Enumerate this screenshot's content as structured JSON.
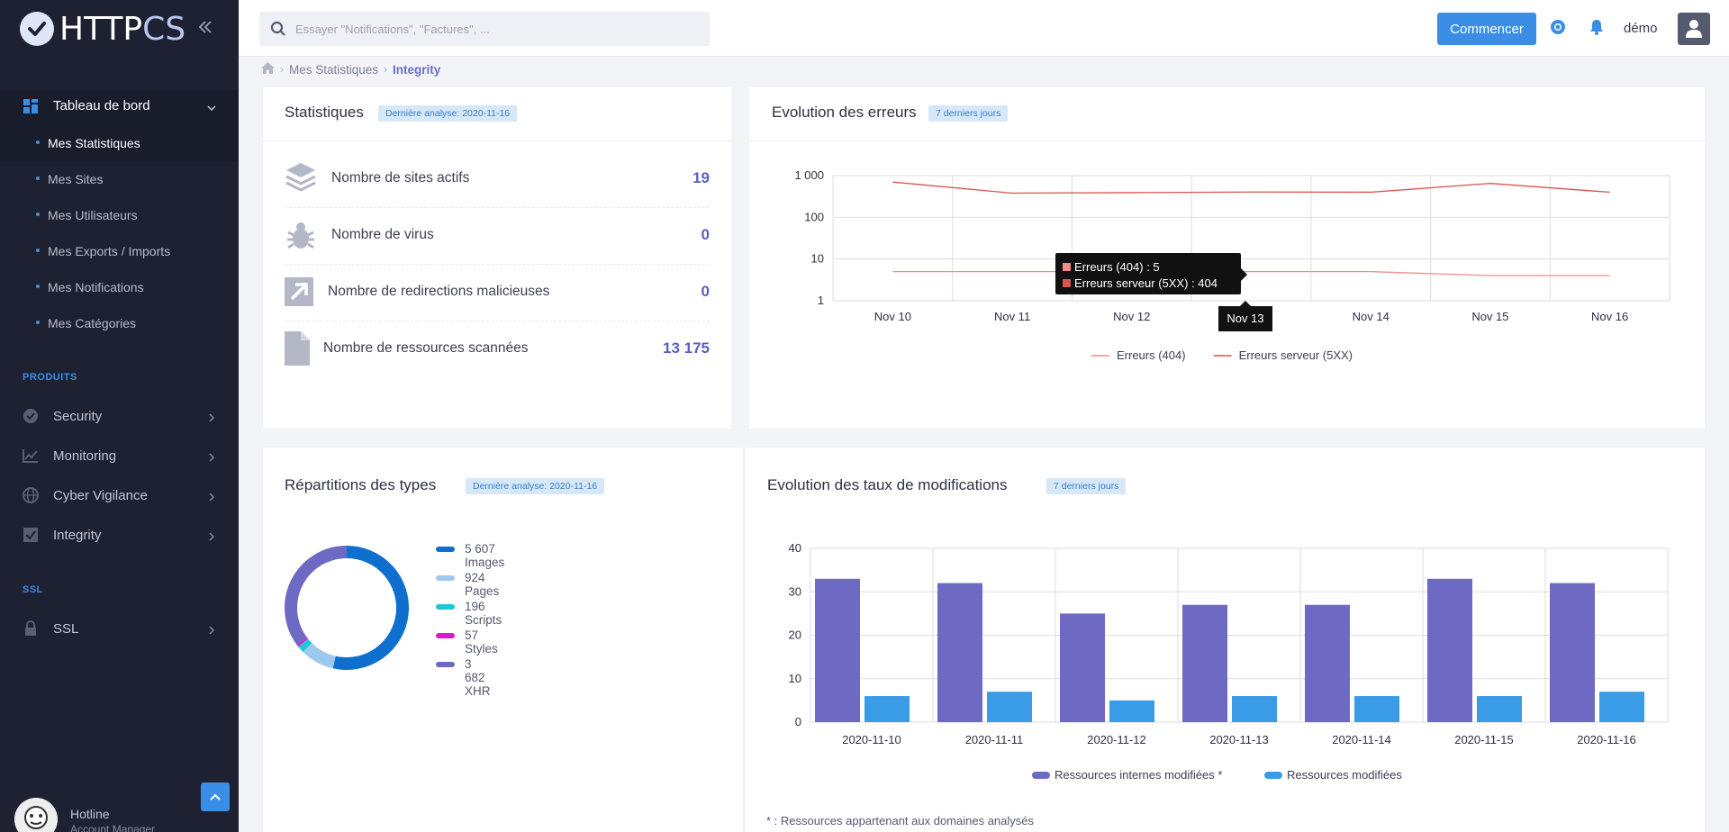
{
  "brand": {
    "name_part1": "HTTP",
    "name_part2": "CS"
  },
  "sidebar": {
    "main": {
      "label": "Tableau de bord"
    },
    "sub_items": [
      {
        "label": "Mes Statistiques",
        "active": true
      },
      {
        "label": "Mes Sites"
      },
      {
        "label": "Mes Utilisateurs"
      },
      {
        "label": "Mes Exports / Imports"
      },
      {
        "label": "Mes Notifications"
      },
      {
        "label": "Mes Catégories"
      }
    ],
    "products_label": "PRODUITS",
    "products": [
      {
        "label": "Security",
        "icon": "shield-icon"
      },
      {
        "label": "Monitoring",
        "icon": "chart-line-icon"
      },
      {
        "label": "Cyber Vigilance",
        "icon": "globe-icon"
      },
      {
        "label": "Integrity",
        "icon": "checkbox-icon"
      }
    ],
    "ssl_label": "SSL",
    "ssl_item": {
      "label": "SSL",
      "icon": "lock-icon"
    },
    "hotline": {
      "name": "Hotline",
      "role": "Account Manager"
    }
  },
  "topbar": {
    "search_placeholder": "Essayer \"Notifications\", \"Factures\", ...",
    "start_button": "Commencer",
    "user": "démo"
  },
  "breadcrumb": {
    "level1": "Mes Statistiques",
    "level2": "Integrity"
  },
  "stats_card": {
    "title": "Statistiques",
    "badge": "Dernière analyse: 2020-11-16",
    "rows": [
      {
        "label": "Nombre de sites actifs",
        "value": "19",
        "icon": "layers-icon"
      },
      {
        "label": "Nombre de virus",
        "value": "0",
        "icon": "bug-icon"
      },
      {
        "label": "Nombre de redirections malicieuses",
        "value": "0",
        "icon": "redirect-arrow-icon"
      },
      {
        "label": "Nombre de ressources scannées",
        "value": "13 175",
        "icon": "file-icon"
      }
    ]
  },
  "errors_card": {
    "title": "Evolution des erreurs",
    "badge": "7 derniers jours",
    "tooltip": {
      "line1": "Erreurs (404) : 5",
      "line2": "Erreurs serveur (5XX) : 404",
      "x": "Nov 13"
    },
    "colors": {
      "series1": "#f28b8b",
      "series2": "#d9534f"
    }
  },
  "types_card": {
    "title": "Répartitions des types",
    "badge": "Dernière analyse: 2020-11-16",
    "legend": [
      {
        "label": "5 607 Images",
        "color": "#0f6fcf"
      },
      {
        "label": "924 Pages",
        "color": "#9ec9ef"
      },
      {
        "label": "196 Scripts",
        "color": "#1ec6d8"
      },
      {
        "label": "57 Styles",
        "color": "#d91bc8"
      },
      {
        "label": "3 682 XHR",
        "color": "#6e6ac4"
      }
    ]
  },
  "mods_card": {
    "title": "Evolution des taux de modifications",
    "badge": "7 derniers jours",
    "footnote": "* : Ressources appartenant aux domaines analysés"
  },
  "chart_data": [
    {
      "type": "line",
      "x": [
        "Nov 10",
        "Nov 11",
        "Nov 12",
        "Nov 13",
        "Nov 14",
        "Nov 15",
        "Nov 16"
      ],
      "series": [
        {
          "name": "Erreurs (404)",
          "values": [
            5,
            5,
            5,
            5,
            5,
            4,
            4
          ],
          "color": "#f28b8b"
        },
        {
          "name": "Erreurs serveur (5XX)",
          "values": [
            700,
            380,
            390,
            404,
            400,
            650,
            400
          ],
          "color": "#d9534f"
        }
      ],
      "yscale": "log",
      "ylim": [
        1,
        1000
      ],
      "yticks": [
        "1",
        "10",
        "100",
        "1 000"
      ],
      "grid": true,
      "legend": "bottom"
    },
    {
      "type": "pie",
      "categories": [
        "Images",
        "Pages",
        "Scripts",
        "Styles",
        "XHR"
      ],
      "values": [
        5607,
        924,
        196,
        57,
        3682
      ],
      "colors": [
        "#0f6fcf",
        "#9ec9ef",
        "#1ec6d8",
        "#d91bc8",
        "#6e6ac4"
      ],
      "legend": "right"
    },
    {
      "type": "bar",
      "categories": [
        "2020-11-10",
        "2020-11-11",
        "2020-11-12",
        "2020-11-13",
        "2020-11-14",
        "2020-11-15",
        "2020-11-16"
      ],
      "series": [
        {
          "name": "Ressources internes modifiées *",
          "values": [
            33,
            32,
            25,
            27,
            27,
            33,
            32
          ],
          "color": "#6e6ac4"
        },
        {
          "name": "Ressources modifiées",
          "values": [
            6,
            7,
            5,
            6,
            6,
            6,
            7
          ],
          "color": "#3a9ce6"
        }
      ],
      "ylim": [
        0,
        40
      ],
      "yticks": [
        "0",
        "10",
        "20",
        "30",
        "40"
      ],
      "grid": true,
      "legend": "bottom"
    }
  ]
}
